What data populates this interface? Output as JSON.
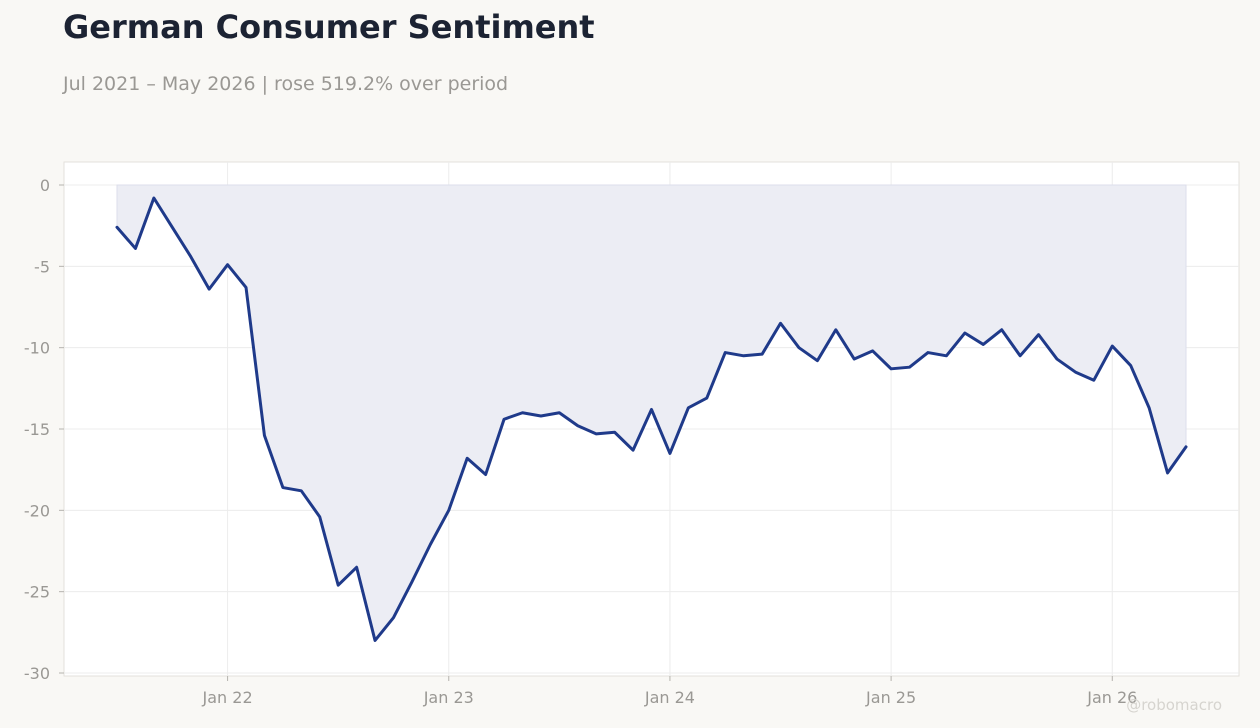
{
  "header": {
    "title": "German Consumer Sentiment",
    "subtitle": "Jul 2021 – May 2026 | rose 519.2% over period"
  },
  "watermark": "@robomacro",
  "colors": {
    "line": "#1f3a8a",
    "fill": "#ecedf4",
    "grid": "#ececec",
    "axis_text": "#9a9894",
    "background": "#f9f8f5",
    "plot_background": "#ffffff"
  },
  "chart_data": {
    "type": "area",
    "title": "German Consumer Sentiment",
    "subtitle": "Jul 2021 – May 2026 | rose 519.2% over period",
    "xlabel": "",
    "ylabel": "",
    "ylim": [
      -30,
      0
    ],
    "yticks": [
      0,
      -5,
      -10,
      -15,
      -20,
      -25,
      -30
    ],
    "xticks": [
      {
        "date": "2022-01",
        "label": "Jan 22"
      },
      {
        "date": "2023-01",
        "label": "Jan 23"
      },
      {
        "date": "2024-01",
        "label": "Jan 24"
      },
      {
        "date": "2025-01",
        "label": "Jan 25"
      },
      {
        "date": "2026-01",
        "label": "Jan 26"
      }
    ],
    "grid": true,
    "fill_to": 0,
    "series": [
      {
        "x": [
          "2021-07",
          "2021-08",
          "2021-09",
          "2021-10",
          "2021-11",
          "2021-12",
          "2022-01",
          "2022-02",
          "2022-03",
          "2022-04",
          "2022-05",
          "2022-06",
          "2022-07",
          "2022-08",
          "2022-09",
          "2022-10",
          "2022-11",
          "2022-12",
          "2023-01",
          "2023-02",
          "2023-03",
          "2023-04",
          "2023-05",
          "2023-06",
          "2023-07",
          "2023-08",
          "2023-09",
          "2023-10",
          "2023-11",
          "2023-12",
          "2024-01",
          "2024-02",
          "2024-03",
          "2024-04",
          "2024-05",
          "2024-06",
          "2024-07",
          "2024-08",
          "2024-09",
          "2024-10",
          "2024-11",
          "2024-12",
          "2025-01",
          "2025-02",
          "2025-03",
          "2025-04",
          "2025-05",
          "2025-06",
          "2025-07",
          "2025-08",
          "2025-09",
          "2025-10",
          "2025-11",
          "2025-12",
          "2026-01",
          "2026-02",
          "2026-03",
          "2026-04",
          "2026-05"
        ],
        "values": [
          -2.6,
          -3.9,
          -0.8,
          -2.6,
          -4.4,
          -6.4,
          -4.9,
          -6.3,
          -15.4,
          -18.6,
          -18.8,
          -20.4,
          -24.6,
          -23.5,
          -28.0,
          -26.6,
          -24.4,
          -22.1,
          -20.0,
          -16.8,
          -17.8,
          -14.4,
          -14.0,
          -14.2,
          -14.0,
          -14.8,
          -15.3,
          -15.2,
          -16.3,
          -13.8,
          -16.5,
          -13.7,
          -13.1,
          -10.3,
          -10.5,
          -10.4,
          -8.5,
          -10.0,
          -10.8,
          -8.9,
          -10.7,
          -10.2,
          -11.3,
          -11.2,
          -10.3,
          -10.5,
          -9.1,
          -9.8,
          -8.9,
          -10.5,
          -9.2,
          -10.7,
          -11.5,
          -12.0,
          -9.9,
          -11.1,
          -13.7,
          -17.7,
          -16.1
        ]
      }
    ]
  }
}
